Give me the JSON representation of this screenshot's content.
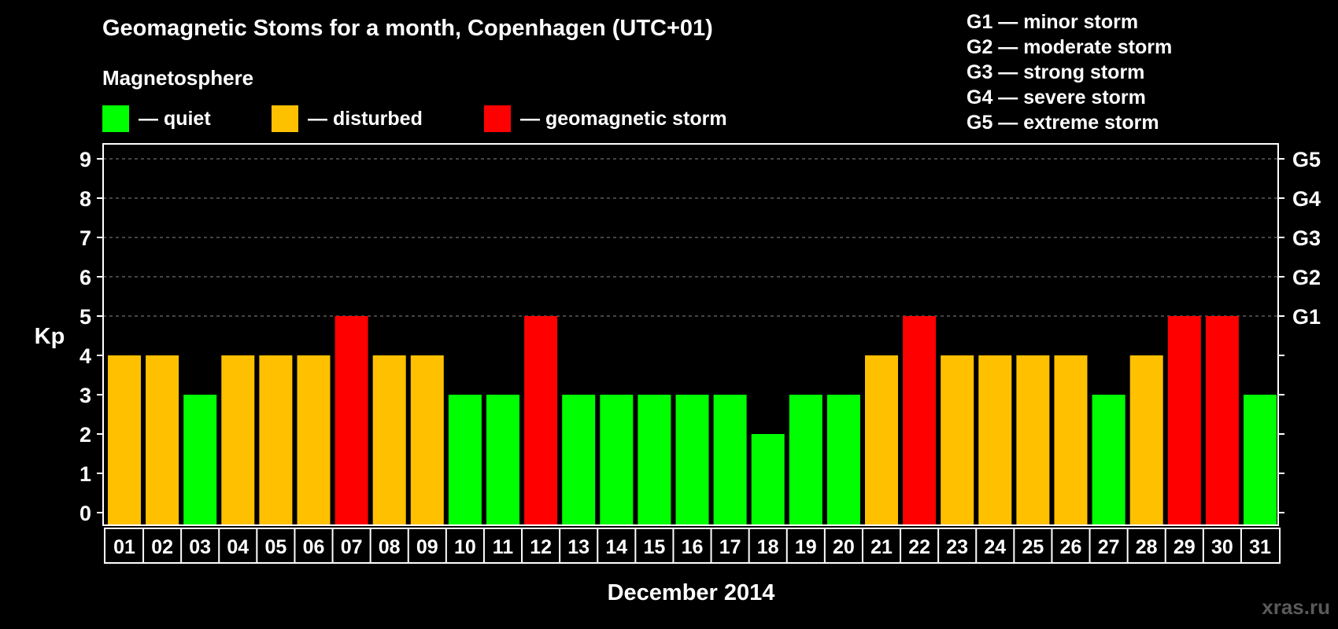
{
  "title": "Geomagnetic Stoms for a month, Copenhagen (UTC+01)",
  "section_label": "Magnetosphere",
  "legend": [
    {
      "label": "— quiet",
      "color": "#00ff00"
    },
    {
      "label": "— disturbed",
      "color": "#ffc000"
    },
    {
      "label": "— geomagnetic storm",
      "color": "#ff0000"
    }
  ],
  "g_levels": [
    "G1 — minor storm",
    "G2 — moderate storm",
    "G3 — strong storm",
    "G4 — severe storm",
    "G5 — extreme storm"
  ],
  "watermark": "xras.ru",
  "chart_data": {
    "type": "bar",
    "xlabel": "December 2014",
    "ylabel": "Kp",
    "ylim": [
      0,
      9
    ],
    "y_ticks": [
      0,
      1,
      2,
      3,
      4,
      5,
      6,
      7,
      8,
      9
    ],
    "right_tick_labels": [
      {
        "value": 5,
        "label": "G1"
      },
      {
        "value": 6,
        "label": "G2"
      },
      {
        "value": 7,
        "label": "G3"
      },
      {
        "value": 8,
        "label": "G4"
      },
      {
        "value": 9,
        "label": "G5"
      }
    ],
    "grid": "dashed horizontal at Kp 5-9",
    "categories": [
      "01",
      "02",
      "03",
      "04",
      "05",
      "06",
      "07",
      "08",
      "09",
      "10",
      "11",
      "12",
      "13",
      "14",
      "15",
      "16",
      "17",
      "18",
      "19",
      "20",
      "21",
      "22",
      "23",
      "24",
      "25",
      "26",
      "27",
      "28",
      "29",
      "30",
      "31"
    ],
    "values": [
      4,
      4,
      3,
      4,
      4,
      4,
      5,
      4,
      4,
      3,
      3,
      5,
      3,
      3,
      3,
      3,
      3,
      2,
      3,
      3,
      4,
      5,
      4,
      4,
      4,
      4,
      3,
      4,
      5,
      5,
      3
    ],
    "colors": {
      "quiet": "#00ff00",
      "disturbed": "#ffc000",
      "storm": "#ff0000"
    }
  }
}
